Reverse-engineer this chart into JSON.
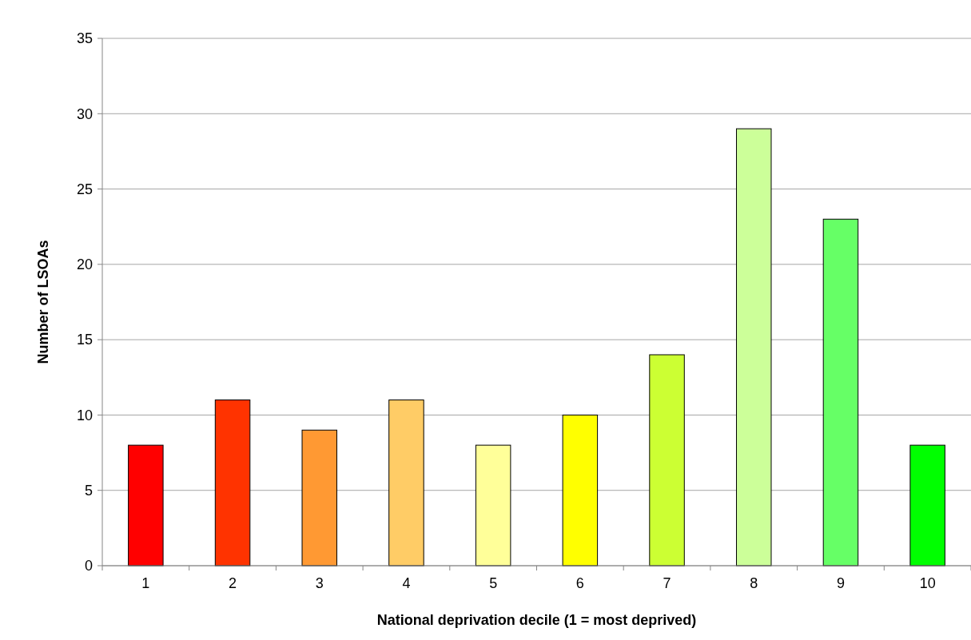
{
  "chart_data": {
    "type": "bar",
    "xlabel": "National deprivation decile (1 = most deprived)",
    "ylabel": "Number of LSOAs",
    "categories": [
      "1",
      "2",
      "3",
      "4",
      "5",
      "6",
      "7",
      "8",
      "9",
      "10"
    ],
    "values": [
      8,
      11,
      9,
      11,
      8,
      10,
      14,
      29,
      23,
      8
    ],
    "colors": [
      "#ff0000",
      "#ff3300",
      "#ff9933",
      "#ffcc66",
      "#ffff99",
      "#ffff00",
      "#ccff33",
      "#ccff99",
      "#66ff66",
      "#00ff00"
    ],
    "ylim": [
      0,
      35
    ],
    "yticks": [
      0,
      5,
      10,
      15,
      20,
      25,
      30,
      35
    ],
    "grid": "y"
  }
}
